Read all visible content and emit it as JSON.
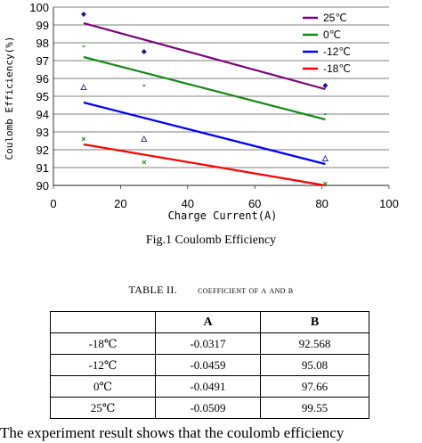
{
  "chart_data": {
    "type": "scatter",
    "xlabel": "Charge Current(A)",
    "ylabel": "Coulomb Efficiency(%)",
    "xlim": [
      0,
      100
    ],
    "ylim": [
      90,
      100
    ],
    "xticks": [
      "0",
      "20",
      "40",
      "60",
      "80",
      "100"
    ],
    "yticks": [
      "90",
      "91",
      "92",
      "93",
      "94",
      "95",
      "96",
      "97",
      "98",
      "99",
      "100"
    ],
    "legend_position": "top-right",
    "grid": "horizontal",
    "series": [
      {
        "name": "25℃",
        "color": "#7b007b",
        "marker": "diamond",
        "fit_x": [
          9,
          81
        ],
        "fit_y": [
          99.1,
          95.4
        ],
        "points": [
          [
            9,
            99.6
          ],
          [
            27,
            97.5
          ],
          [
            81,
            95.6
          ]
        ]
      },
      {
        "name": "0℃",
        "color": "#138a13",
        "marker": "dash",
        "fit_x": [
          9,
          81
        ],
        "fit_y": [
          97.2,
          93.7
        ],
        "points": [
          [
            9,
            97.8
          ],
          [
            27,
            95.6
          ],
          [
            81,
            94.0
          ]
        ]
      },
      {
        "name": "-12℃",
        "color": "#0000ff",
        "marker": "triangle",
        "fit_x": [
          9,
          81
        ],
        "fit_y": [
          94.65,
          91.2
        ],
        "points": [
          [
            9,
            95.5
          ],
          [
            27,
            92.6
          ],
          [
            81,
            91.5
          ]
        ]
      },
      {
        "name": "-18℃",
        "color": "#ff0000",
        "marker": "x",
        "fit_x": [
          9,
          81
        ],
        "fit_y": [
          92.3,
          90.0
        ],
        "points": [
          [
            9,
            92.6
          ],
          [
            27,
            91.3
          ],
          [
            81,
            90.1
          ]
        ]
      }
    ]
  },
  "figure_caption": "Fig.1 Coulomb Efficiency",
  "table_title": {
    "prefix": "TABLE II.",
    "text": "coefficient of A and B"
  },
  "table": {
    "headers": [
      "",
      "A",
      "B"
    ],
    "rows": [
      [
        "-18℃",
        "-0.0317",
        "92.568"
      ],
      [
        "-12℃",
        "-0.0459",
        "95.08"
      ],
      [
        "0℃",
        "-0.0491",
        "97.66"
      ],
      [
        "25℃",
        "-0.0509",
        "99.55"
      ]
    ]
  },
  "footer_text": "The experiment result shows that the coulomb efficiency"
}
